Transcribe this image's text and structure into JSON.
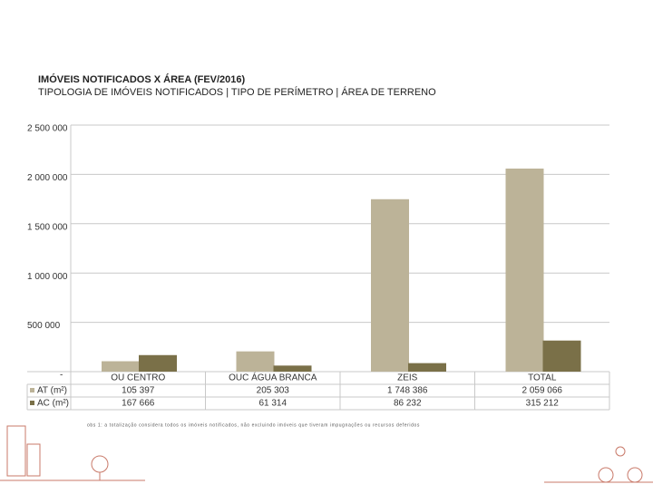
{
  "chart_data": {
    "type": "bar",
    "title": "IMÓVEIS NOTIFICADOS X ÁREA (FEV/2016)",
    "subtitle": "TIPOLOGIA DE IMÓVEIS NOTIFICADOS | TIPO DE PERÍMETRO | ÁREA DE TERRENO",
    "categories": [
      "OU CENTRO",
      "OUC ÁGUA BRANCA",
      "ZEIS",
      "TOTAL"
    ],
    "series": [
      {
        "name": "AT (m²)",
        "color": "#bcb398",
        "values": [
          105397,
          205303,
          1748386,
          2059066
        ],
        "value_labels": [
          "105 397",
          "205 303",
          "1 748 386",
          "2 059 066"
        ]
      },
      {
        "name": "AC (m²)",
        "color": "#7a7048",
        "values": [
          167666,
          61314,
          86232,
          315212
        ],
        "value_labels": [
          "167 666",
          "61 314",
          "86 232",
          "315 212"
        ]
      }
    ],
    "ylim": [
      0,
      2500000
    ],
    "yticks": [
      {
        "value": 0,
        "label": "-"
      },
      {
        "value": 500000,
        "label": "500 000"
      },
      {
        "value": 1000000,
        "label": "1 000 000"
      },
      {
        "value": 1500000,
        "label": "1 500 000"
      },
      {
        "value": 2000000,
        "label": "2 000 000"
      },
      {
        "value": 2500000,
        "label": "2 500 000"
      }
    ],
    "grid": true,
    "note": "obs 1: a totalização considera todos os imóveis notificados, não excluindo imóveis que tiveram impugnações ou recursos deferidos"
  }
}
